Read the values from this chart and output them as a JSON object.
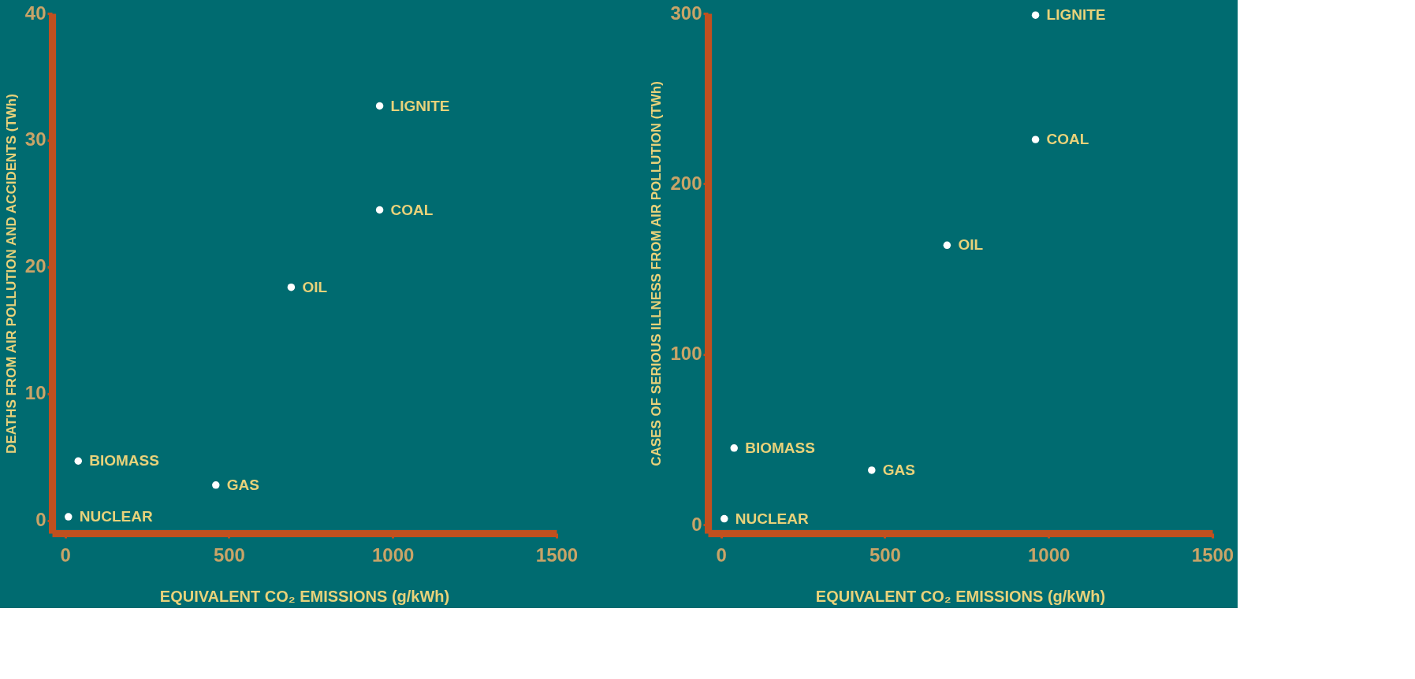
{
  "chart_data": [
    {
      "type": "scatter",
      "xlabel": "EQUIVALENT CO₂ EMISSIONS (g/kWh)",
      "ylabel": "DEATHS FROM AIR POLLUTION AND ACCIDENTS (TWh)",
      "xlim": [
        -40,
        1500
      ],
      "ylim": [
        -1,
        40
      ],
      "xticks": [
        0,
        500,
        1000,
        1500
      ],
      "yticks": [
        0,
        10,
        20,
        30,
        40
      ],
      "grid": false,
      "series": [
        {
          "color": "#ffffff",
          "x": [
            10,
            40,
            460,
            690,
            960,
            960
          ],
          "values": [
            0.3,
            4.7,
            2.8,
            18.4,
            24.5,
            32.7
          ]
        }
      ],
      "annotations": [
        {
          "text": "NUCLEAR",
          "x": 10,
          "y": 0.3
        },
        {
          "text": "BIOMASS",
          "x": 40,
          "y": 4.7
        },
        {
          "text": "GAS",
          "x": 460,
          "y": 2.8
        },
        {
          "text": "OIL",
          "x": 690,
          "y": 18.4
        },
        {
          "text": "COAL",
          "x": 960,
          "y": 24.5
        },
        {
          "text": "LIGNITE",
          "x": 960,
          "y": 32.7
        }
      ]
    },
    {
      "type": "scatter",
      "xlabel": "EQUIVALENT CO₂ EMISSIONS (g/kWh)",
      "ylabel": "CASES OF SERIOUS ILLNESS FROM AIR POLLUTION (TWh)",
      "xlim": [
        -40,
        1500
      ],
      "ylim": [
        -5,
        300
      ],
      "xticks": [
        0,
        500,
        1000,
        1500
      ],
      "yticks": [
        0,
        100,
        200,
        300
      ],
      "grid": false,
      "series": [
        {
          "color": "#ffffff",
          "x": [
            10,
            40,
            460,
            690,
            960,
            960
          ],
          "values": [
            3.5,
            45,
            32,
            164,
            226,
            299
          ]
        }
      ],
      "annotations": [
        {
          "text": "NUCLEAR",
          "x": 10,
          "y": 3.5
        },
        {
          "text": "BIOMASS",
          "x": 40,
          "y": 45
        },
        {
          "text": "GAS",
          "x": 460,
          "y": 32
        },
        {
          "text": "OIL",
          "x": 690,
          "y": 164
        },
        {
          "text": "COAL",
          "x": 960,
          "y": 226
        },
        {
          "text": "LIGNITE",
          "x": 960,
          "y": 299
        }
      ]
    }
  ]
}
